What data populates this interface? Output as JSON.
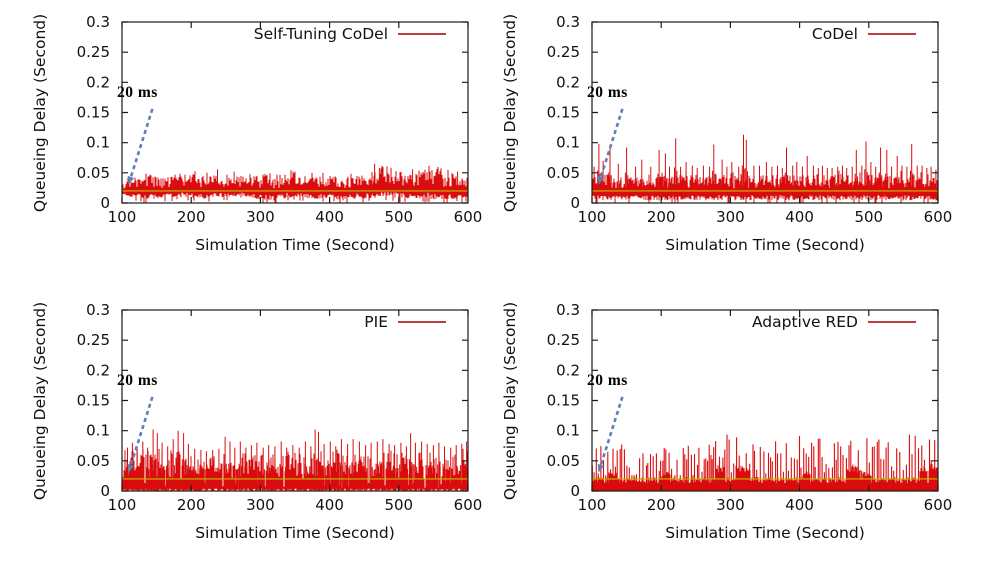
{
  "colors": {
    "series_red": "#d90d0d",
    "legend_line_red": "#bc4040",
    "reference_line_yellow": "#c8b400",
    "annotation_arrow_blue": "#5b80b4",
    "axis_black": "#1a1a1a",
    "background": "#ffffff"
  },
  "chart_data": [
    {
      "type": "line",
      "panel": "top-left",
      "legend": "Self-Tuning CoDel",
      "xlabel": "Simulation Time (Second)",
      "ylabel": "Queueing Delay (Second)",
      "xlim": [
        100,
        600
      ],
      "ylim": [
        0,
        0.3
      ],
      "x_ticks": [
        100,
        200,
        300,
        400,
        500,
        600
      ],
      "y_ticks": [
        [
          0,
          "0"
        ],
        [
          0.05,
          "0.05"
        ],
        [
          0.1,
          "0.1"
        ],
        [
          0.15,
          "0.15"
        ],
        [
          0.2,
          "0.2"
        ],
        [
          0.25,
          "0.25"
        ],
        [
          0.3,
          "0.3"
        ]
      ],
      "grid": false,
      "legend_position": "top-right-inside",
      "annotation": {
        "text": "20 ms",
        "arrow_from": [
          144,
          0.156
        ],
        "arrow_to": [
          112,
          0.04
        ],
        "points_to_s": 0.02
      },
      "reference_line_s": 0.02,
      "series_style": "band",
      "seed": 9,
      "envelope_x": [
        100,
        120,
        140,
        160,
        180,
        200,
        220,
        240,
        260,
        280,
        300,
        320,
        340,
        360,
        380,
        400,
        420,
        440,
        460,
        480,
        500,
        520,
        540,
        560,
        580,
        600
      ],
      "envelope_lo": [
        0.012,
        0.008,
        0.006,
        0.009,
        0.01,
        0.008,
        0.006,
        0.009,
        0.01,
        0.008,
        0.005,
        0.004,
        0.008,
        0.01,
        0.006,
        0.008,
        0.004,
        0.006,
        0.008,
        0.01,
        0.008,
        0.006,
        0.008,
        0.004,
        0.006,
        0.008
      ],
      "envelope_hi": [
        0.032,
        0.042,
        0.046,
        0.04,
        0.045,
        0.05,
        0.042,
        0.046,
        0.04,
        0.05,
        0.046,
        0.042,
        0.05,
        0.046,
        0.042,
        0.046,
        0.04,
        0.05,
        0.046,
        0.06,
        0.05,
        0.046,
        0.055,
        0.05,
        0.046,
        0.042
      ],
      "peaks": [
        [
          238,
          0.056
        ],
        [
          262,
          0.052
        ],
        [
          350,
          0.052
        ],
        [
          465,
          0.065
        ],
        [
          472,
          0.058
        ],
        [
          520,
          0.056
        ],
        [
          585,
          0.052
        ]
      ]
    },
    {
      "type": "line",
      "panel": "top-right",
      "legend": "CoDel",
      "xlabel": "Simulation Time (Second)",
      "ylabel": "Queueing Delay (Second)",
      "xlim": [
        100,
        600
      ],
      "ylim": [
        0,
        0.3
      ],
      "x_ticks": [
        100,
        200,
        300,
        400,
        500,
        600
      ],
      "y_ticks": [
        [
          0,
          "0"
        ],
        [
          0.05,
          "0.05"
        ],
        [
          0.1,
          "0.1"
        ],
        [
          0.15,
          "0.15"
        ],
        [
          0.2,
          "0.2"
        ],
        [
          0.25,
          "0.25"
        ],
        [
          0.3,
          "0.3"
        ]
      ],
      "grid": false,
      "legend_position": "top-right-inside",
      "annotation": {
        "text": "20 ms",
        "arrow_from": [
          144,
          0.156
        ],
        "arrow_to": [
          112,
          0.04
        ],
        "points_to_s": 0.02
      },
      "reference_line_s": 0.02,
      "series_style": "band",
      "seed": 21,
      "envelope_x": [
        100,
        120,
        140,
        160,
        180,
        200,
        220,
        240,
        260,
        280,
        300,
        320,
        340,
        360,
        380,
        400,
        420,
        440,
        460,
        480,
        500,
        520,
        540,
        560,
        580,
        600
      ],
      "envelope_lo": [
        0.004,
        0.004,
        0.004,
        0.004,
        0.004,
        0.004,
        0.004,
        0.004,
        0.004,
        0.004,
        0.004,
        0.004,
        0.004,
        0.004,
        0.004,
        0.004,
        0.004,
        0.004,
        0.004,
        0.004,
        0.004,
        0.004,
        0.004,
        0.004,
        0.004,
        0.004
      ],
      "envelope_hi": [
        0.052,
        0.046,
        0.044,
        0.046,
        0.044,
        0.046,
        0.044,
        0.046,
        0.044,
        0.046,
        0.044,
        0.046,
        0.046,
        0.044,
        0.046,
        0.044,
        0.046,
        0.044,
        0.046,
        0.044,
        0.046,
        0.044,
        0.046,
        0.046,
        0.044,
        0.046
      ],
      "peaks": [
        [
          103,
          0.06
        ],
        [
          110,
          0.098
        ],
        [
          116,
          0.07
        ],
        [
          126,
          0.092
        ],
        [
          138,
          0.065
        ],
        [
          150,
          0.092
        ],
        [
          163,
          0.06
        ],
        [
          172,
          0.072
        ],
        [
          185,
          0.06
        ],
        [
          197,
          0.088
        ],
        [
          206,
          0.082
        ],
        [
          212,
          0.06
        ],
        [
          221,
          0.107
        ],
        [
          228,
          0.06
        ],
        [
          236,
          0.068
        ],
        [
          245,
          0.062
        ],
        [
          252,
          0.058
        ],
        [
          261,
          0.062
        ],
        [
          270,
          0.06
        ],
        [
          276,
          0.097
        ],
        [
          288,
          0.072
        ],
        [
          295,
          0.06
        ],
        [
          302,
          0.068
        ],
        [
          312,
          0.06
        ],
        [
          319,
          0.113
        ],
        [
          323,
          0.105
        ],
        [
          334,
          0.062
        ],
        [
          342,
          0.062
        ],
        [
          352,
          0.068
        ],
        [
          360,
          0.06
        ],
        [
          368,
          0.062
        ],
        [
          375,
          0.058
        ],
        [
          381,
          0.092
        ],
        [
          390,
          0.062
        ],
        [
          396,
          0.068
        ],
        [
          404,
          0.06
        ],
        [
          411,
          0.078
        ],
        [
          420,
          0.062
        ],
        [
          427,
          0.058
        ],
        [
          433,
          0.062
        ],
        [
          440,
          0.058
        ],
        [
          447,
          0.058
        ],
        [
          455,
          0.06
        ],
        [
          462,
          0.062
        ],
        [
          468,
          0.058
        ],
        [
          476,
          0.06
        ],
        [
          482,
          0.088
        ],
        [
          490,
          0.062
        ],
        [
          496,
          0.102
        ],
        [
          503,
          0.068
        ],
        [
          510,
          0.06
        ],
        [
          517,
          0.092
        ],
        [
          526,
          0.088
        ],
        [
          533,
          0.06
        ],
        [
          541,
          0.078
        ],
        [
          548,
          0.062
        ],
        [
          555,
          0.06
        ],
        [
          562,
          0.098
        ],
        [
          570,
          0.062
        ],
        [
          577,
          0.062
        ],
        [
          584,
          0.058
        ],
        [
          590,
          0.06
        ],
        [
          597,
          0.055
        ]
      ]
    },
    {
      "type": "line",
      "panel": "bottom-left",
      "legend": "PIE",
      "xlabel": "Simulation Time (Second)",
      "ylabel": "Queueing Delay (Second)",
      "xlim": [
        100,
        600
      ],
      "ylim": [
        0,
        0.3
      ],
      "x_ticks": [
        100,
        200,
        300,
        400,
        500,
        600
      ],
      "y_ticks": [
        [
          0,
          "0"
        ],
        [
          0.05,
          "0.05"
        ],
        [
          0.1,
          "0.1"
        ],
        [
          0.15,
          "0.15"
        ],
        [
          0.2,
          "0.2"
        ],
        [
          0.25,
          "0.25"
        ],
        [
          0.3,
          "0.3"
        ]
      ],
      "grid": false,
      "legend_position": "top-right-inside",
      "annotation": {
        "text": "20 ms",
        "arrow_from": [
          144,
          0.156
        ],
        "arrow_to": [
          112,
          0.04
        ],
        "points_to_s": 0.02
      },
      "reference_line_s": 0.02,
      "series_style": "band",
      "seed": 33,
      "envelope_x": [
        100,
        120,
        140,
        160,
        180,
        200,
        220,
        240,
        260,
        280,
        300,
        320,
        340,
        360,
        380,
        400,
        420,
        440,
        460,
        480,
        500,
        520,
        540,
        560,
        580,
        600
      ],
      "envelope_lo": [
        0,
        0,
        0,
        0,
        0,
        0,
        0,
        0,
        0,
        0,
        0,
        0,
        0,
        0,
        0,
        0,
        0,
        0,
        0,
        0,
        0,
        0,
        0,
        0,
        0,
        0
      ],
      "envelope_hi": [
        0.062,
        0.066,
        0.06,
        0.065,
        0.06,
        0.056,
        0.05,
        0.056,
        0.06,
        0.056,
        0.06,
        0.055,
        0.06,
        0.056,
        0.06,
        0.065,
        0.06,
        0.056,
        0.06,
        0.066,
        0.06,
        0.056,
        0.06,
        0.056,
        0.06,
        0.066
      ],
      "peaks": [
        [
          108,
          0.072
        ],
        [
          115,
          0.08
        ],
        [
          122,
          0.07
        ],
        [
          130,
          0.082
        ],
        [
          137,
          0.072
        ],
        [
          145,
          0.102
        ],
        [
          151,
          0.096
        ],
        [
          158,
          0.08
        ],
        [
          166,
          0.074
        ],
        [
          174,
          0.086
        ],
        [
          181,
          0.1
        ],
        [
          189,
          0.096
        ],
        [
          196,
          0.078
        ],
        [
          205,
          0.07
        ],
        [
          214,
          0.068
        ],
        [
          222,
          0.066
        ],
        [
          231,
          0.068
        ],
        [
          240,
          0.07
        ],
        [
          249,
          0.09
        ],
        [
          256,
          0.082
        ],
        [
          263,
          0.072
        ],
        [
          271,
          0.082
        ],
        [
          279,
          0.072
        ],
        [
          287,
          0.076
        ],
        [
          295,
          0.08
        ],
        [
          304,
          0.072
        ],
        [
          312,
          0.076
        ],
        [
          321,
          0.074
        ],
        [
          330,
          0.082
        ],
        [
          338,
          0.072
        ],
        [
          347,
          0.076
        ],
        [
          356,
          0.072
        ],
        [
          365,
          0.082
        ],
        [
          373,
          0.074
        ],
        [
          379,
          0.102
        ],
        [
          384,
          0.098
        ],
        [
          392,
          0.078
        ],
        [
          401,
          0.082
        ],
        [
          409,
          0.074
        ],
        [
          417,
          0.086
        ],
        [
          426,
          0.078
        ],
        [
          434,
          0.086
        ],
        [
          443,
          0.082
        ],
        [
          452,
          0.076
        ],
        [
          460,
          0.08
        ],
        [
          469,
          0.082
        ],
        [
          477,
          0.086
        ],
        [
          486,
          0.078
        ],
        [
          494,
          0.076
        ],
        [
          503,
          0.08
        ],
        [
          511,
          0.074
        ],
        [
          517,
          0.096
        ],
        [
          524,
          0.08
        ],
        [
          533,
          0.082
        ],
        [
          541,
          0.078
        ],
        [
          550,
          0.076
        ],
        [
          558,
          0.08
        ],
        [
          566,
          0.074
        ],
        [
          575,
          0.072
        ],
        [
          583,
          0.076
        ],
        [
          591,
          0.078
        ],
        [
          598,
          0.082
        ]
      ]
    },
    {
      "type": "line",
      "panel": "bottom-right",
      "legend": "Adaptive RED",
      "xlabel": "Simulation Time (Second)",
      "ylabel": "Queueing Delay (Second)",
      "xlim": [
        100,
        600
      ],
      "ylim": [
        0,
        0.3
      ],
      "x_ticks": [
        100,
        200,
        300,
        400,
        500,
        600
      ],
      "y_ticks": [
        [
          0,
          "0"
        ],
        [
          0.05,
          "0.05"
        ],
        [
          0.1,
          "0.1"
        ],
        [
          0.15,
          "0.15"
        ],
        [
          0.2,
          "0.2"
        ],
        [
          0.25,
          "0.25"
        ],
        [
          0.3,
          "0.3"
        ]
      ],
      "grid": false,
      "legend_position": "top-right-inside",
      "annotation": {
        "text": "20 ms",
        "arrow_from": [
          144,
          0.156
        ],
        "arrow_to": [
          112,
          0.04
        ],
        "points_to_s": 0.02
      },
      "reference_line_s": 0.02,
      "series_style": "impulses",
      "seed": 45,
      "base_band": [
        0,
        0.022
      ],
      "envelope_x": [
        100,
        120,
        140,
        160,
        180,
        200,
        220,
        240,
        260,
        280,
        300,
        320,
        340,
        360,
        380,
        400,
        420,
        440,
        460,
        480,
        500,
        520,
        540,
        560,
        580,
        600
      ],
      "impulse_hi": [
        0.08,
        0.072,
        0.076,
        0.062,
        0.066,
        0.072,
        0.066,
        0.072,
        0.076,
        0.08,
        0.095,
        0.082,
        0.086,
        0.09,
        0.082,
        0.095,
        0.086,
        0.09,
        0.082,
        0.096,
        0.086,
        0.082,
        0.09,
        0.1,
        0.086,
        0.082
      ]
    }
  ]
}
